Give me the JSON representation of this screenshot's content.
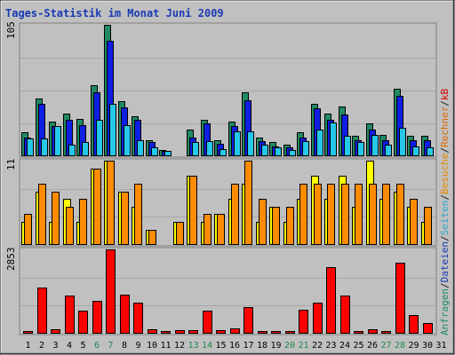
{
  "chart_data": {
    "type": "bar",
    "title": "Tages-Statistik im Monat Juni 2009",
    "categories": [
      "1",
      "2",
      "3",
      "4",
      "5",
      "6",
      "7",
      "8",
      "9",
      "10",
      "11",
      "12",
      "13",
      "14",
      "15",
      "16",
      "17",
      "18",
      "19",
      "20",
      "21",
      "22",
      "23",
      "24",
      "25",
      "26",
      "27",
      "28",
      "29",
      "30",
      "31"
    ],
    "weekend_days": [
      6,
      7,
      13,
      14,
      20,
      21,
      27,
      28
    ],
    "legend_right": [
      {
        "text": "Anfragen",
        "color": "#1e8a6a"
      },
      {
        "text": "/",
        "color": "#1e1e1e"
      },
      {
        "text": "Dateien",
        "color": "#1a3ab3"
      },
      {
        "text": "/",
        "color": "#1e1e1e"
      },
      {
        "text": "Seiten",
        "color": "#2ea8cc"
      },
      {
        "text": "/",
        "color": "#1e1e1e"
      },
      {
        "text": "Besuche",
        "color": "#e88a00"
      },
      {
        "text": "/",
        "color": "#1e1e1e"
      },
      {
        "text": "Rechner",
        "color": "#e06a00"
      },
      {
        "text": "/",
        "color": "#1e1e1e"
      },
      {
        "text": "kB",
        "color": "#d80000"
      }
    ],
    "panels": [
      {
        "id": "hits",
        "ymax": 105,
        "ymax_label": "105",
        "series": [
          {
            "name": "Anfragen",
            "color": "#208a62",
            "values": [
              19,
              46,
              28,
              34,
              30,
              57,
              105,
              44,
              32,
              13,
              5,
              0,
              21,
              29,
              13,
              28,
              51,
              15,
              11,
              9,
              19,
              42,
              34,
              40,
              16,
              26,
              17,
              54,
              16,
              16,
              0
            ]
          },
          {
            "name": "Dateien",
            "color": "#0d1fe3",
            "values": [
              15,
              42,
              24,
              29,
              25,
              51,
              92,
              39,
              29,
              11,
              4,
              0,
              15,
              26,
              10,
              24,
              45,
              12,
              8,
              7,
              15,
              38,
              29,
              33,
              13,
              21,
              13,
              48,
              13,
              13,
              0
            ]
          },
          {
            "name": "Seiten",
            "color": "#26c8ea",
            "values": [
              14,
              14,
              24,
              9,
              11,
              29,
              42,
              25,
              13,
              7,
              4,
              0,
              11,
              12,
              6,
              20,
              20,
              9,
              7,
              5,
              12,
              21,
              27,
              16,
              11,
              17,
              9,
              23,
              8,
              7,
              0
            ]
          }
        ]
      },
      {
        "id": "visits",
        "ymax": 11,
        "ymax_label": "11",
        "series": [
          {
            "name": "Besuche",
            "color": "#ffff00",
            "values": [
              3,
              7,
              3,
              6,
              3,
              10,
              11,
              7,
              5,
              2,
              0,
              3,
              9,
              3,
              4,
              6,
              8,
              3,
              5,
              3,
              6,
              9,
              6,
              9,
              5,
              11,
              6,
              7,
              5,
              3,
              0
            ]
          },
          {
            "name": "Rechner",
            "color": "#ff8c00",
            "values": [
              4,
              8,
              7,
              5,
              6,
              10,
              11,
              7,
              8,
              2,
              0,
              3,
              9,
              4,
              4,
              8,
              11,
              6,
              5,
              5,
              8,
              8,
              8,
              8,
              8,
              8,
              8,
              8,
              6,
              5,
              0
            ]
          }
        ]
      },
      {
        "id": "kb",
        "ymax": 2853,
        "ymax_label": "2853",
        "series": [
          {
            "name": "kB",
            "color": "#ff0000",
            "values": [
              100,
              1560,
              150,
              1300,
              780,
              1110,
              2853,
              1320,
              1060,
              140,
              40,
              120,
              120,
              780,
              130,
              170,
              890,
              80,
              70,
              30,
              800,
              1060,
              2240,
              1280,
              100,
              160,
              100,
              2400,
              640,
              370,
              0
            ]
          }
        ]
      }
    ]
  }
}
